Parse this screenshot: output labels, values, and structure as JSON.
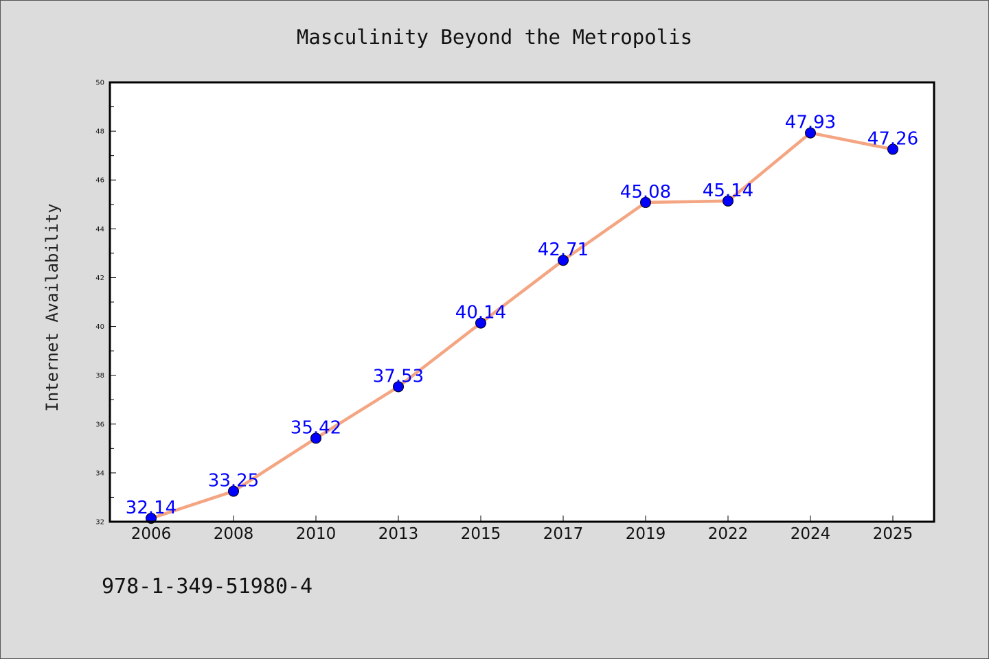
{
  "chart_data": {
    "type": "line",
    "title": "Masculinity Beyond the Metropolis",
    "xlabel": "",
    "ylabel": "Internet Availability",
    "categories": [
      "2006",
      "2008",
      "2010",
      "2013",
      "2015",
      "2017",
      "2019",
      "2022",
      "2024",
      "2025"
    ],
    "values": [
      32.14,
      33.25,
      35.42,
      37.53,
      40.14,
      42.71,
      45.08,
      45.14,
      47.93,
      47.26
    ],
    "data_labels": [
      "32.14",
      "33.25",
      "35.42",
      "37.53",
      "40.14",
      "42.71",
      "45.08",
      "45.14",
      "47.93",
      "47.26"
    ],
    "ylim": [
      32,
      50
    ],
    "yticks": [
      "32",
      "34",
      "36",
      "38",
      "40",
      "42",
      "44",
      "46",
      "48",
      "50"
    ],
    "grid": false,
    "line_color": "#f4a582",
    "marker_color": "#0000ff",
    "label_color": "#0000ff"
  },
  "footer": {
    "isbn": "978-1-349-51980-4"
  }
}
